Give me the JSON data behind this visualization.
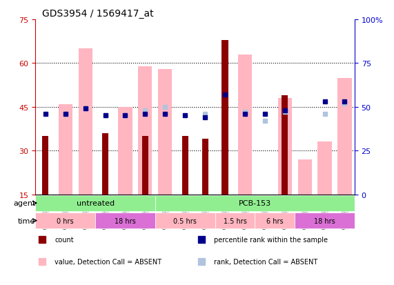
{
  "title": "GDS3954 / 1569417_at",
  "samples": [
    "GSM149381",
    "GSM149382",
    "GSM149383",
    "GSM154182",
    "GSM154183",
    "GSM154184",
    "GSM149384",
    "GSM149385",
    "GSM149386",
    "GSM149387",
    "GSM149388",
    "GSM149389",
    "GSM149390",
    "GSM149391",
    "GSM149392",
    "GSM149393"
  ],
  "count_values": [
    35,
    null,
    null,
    36,
    null,
    35,
    null,
    35,
    34,
    68,
    null,
    null,
    49,
    null,
    null,
    null
  ],
  "rank_values": [
    46,
    46,
    49,
    45,
    45,
    46,
    46,
    45,
    44,
    57,
    46,
    46,
    48,
    null,
    53,
    53
  ],
  "absent_value_vals": [
    null,
    46,
    65,
    null,
    45,
    59,
    58,
    null,
    null,
    null,
    63,
    null,
    48,
    27,
    33,
    55
  ],
  "absent_rank_vals": [
    null,
    46,
    49,
    45,
    45,
    48,
    50,
    null,
    46,
    null,
    47,
    42,
    47,
    null,
    46,
    52
  ],
  "ylim_left": [
    15,
    75
  ],
  "ylim_right": [
    0,
    100
  ],
  "yticks_left": [
    15,
    30,
    45,
    60,
    75
  ],
  "yticks_right": [
    0,
    25,
    50,
    75,
    100
  ],
  "agent_groups": [
    {
      "label": "untreated",
      "start": 0,
      "end": 6,
      "color": "#90EE90"
    },
    {
      "label": "PCB-153",
      "start": 6,
      "end": 16,
      "color": "#90EE90"
    }
  ],
  "time_groups": [
    {
      "label": "0 hrs",
      "start": 0,
      "end": 3,
      "color": "#FFB6C1"
    },
    {
      "label": "18 hrs",
      "start": 3,
      "end": 6,
      "color": "#DA70D6"
    },
    {
      "label": "0.5 hrs",
      "start": 6,
      "end": 9,
      "color": "#FFB6C1"
    },
    {
      "label": "1.5 hrs",
      "start": 9,
      "end": 11,
      "color": "#FFB6C1"
    },
    {
      "label": "6 hrs",
      "start": 11,
      "end": 13,
      "color": "#FFB6C1"
    },
    {
      "label": "18 hrs",
      "start": 13,
      "end": 16,
      "color": "#DA70D6"
    }
  ],
  "bar_width": 0.35,
  "count_color": "#8B0000",
  "rank_color": "#00008B",
  "absent_value_color": "#FFB6C1",
  "absent_rank_color": "#B0C4DE",
  "bg_color": "#FFFFFF",
  "plot_bg": "#FFFFFF",
  "grid_color": "#000000",
  "left_axis_color": "#CC0000",
  "right_axis_color": "#0000CC",
  "sample_bg_color": "#D3D3D3"
}
